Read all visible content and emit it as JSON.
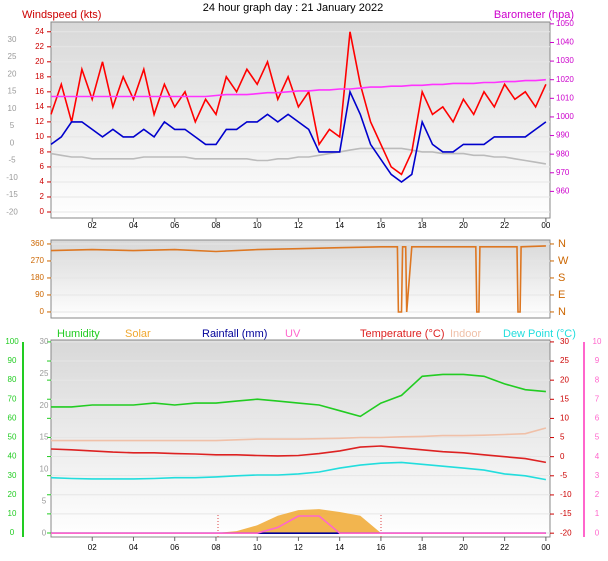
{
  "chart_data": [
    {
      "type": "line",
      "title": "24 hour graph day : 21 January 2022",
      "ylabel": "Windspeed (kts)",
      "y2label": "Barometer (hpa)",
      "x": [
        0,
        0.5,
        1,
        1.5,
        2,
        2.5,
        3,
        3.5,
        4,
        4.5,
        5,
        5.5,
        6,
        6.5,
        7,
        7.5,
        8,
        8.5,
        9,
        9.5,
        10,
        10.5,
        11,
        11.5,
        12,
        12.5,
        13,
        13.5,
        14,
        14.5,
        15,
        15.5,
        16,
        16.5,
        17,
        17.5,
        18,
        18.5,
        19,
        19.5,
        20,
        20.5,
        21,
        21.5,
        22,
        22.5,
        23,
        23.5,
        24
      ],
      "xlim": [
        0,
        24.2
      ],
      "xticks": [
        {
          "value": 2,
          "label": "02"
        },
        {
          "value": 4,
          "label": "04"
        },
        {
          "value": 6,
          "label": "06"
        },
        {
          "value": 8,
          "label": "08"
        },
        10,
        12,
        14,
        16,
        18,
        20,
        22,
        {
          "value": 24,
          "label": "00"
        }
      ],
      "ylim": [
        -0.8,
        25.3
      ],
      "yticks": [
        0,
        2,
        4,
        6,
        8,
        10,
        12,
        14,
        16,
        18,
        20,
        22,
        24
      ],
      "y2lim": [
        945.7,
        1051
      ],
      "y2ticks": [
        960,
        970,
        980,
        990,
        1000,
        1010,
        1020,
        1030,
        1040,
        1050
      ],
      "y3lim": [
        -21.7,
        35.2
      ],
      "y3ticks": [
        -20,
        -15,
        -10,
        -5,
        0,
        5,
        10,
        15,
        20,
        25,
        30
      ],
      "axis_colors": {
        "y": "#cc0000",
        "y2": "#cc00cc",
        "y3": "#999999"
      },
      "grid": true,
      "series": [
        {
          "axis": "y3",
          "color": "#bbbbbb",
          "values": [
            -3,
            -3.5,
            -4,
            -4,
            -4.5,
            -4.5,
            -4.5,
            -4.5,
            -4.5,
            -4,
            -4,
            -4,
            -4,
            -4,
            -4.5,
            -4.5,
            -4.5,
            -4.5,
            -4.5,
            -4.5,
            -5,
            -5,
            -4.5,
            -4.5,
            -4,
            -4,
            -3.5,
            -3,
            -2.5,
            -2,
            -1.5,
            -1.5,
            -1.5,
            -1.5,
            -1.5,
            -2,
            -2.5,
            -2.5,
            -3,
            -3,
            -3,
            -3.5,
            -3.5,
            -4,
            -4,
            -4.5,
            -5,
            -5.5,
            -6
          ]
        },
        {
          "axis": "y",
          "color": "#ff0000",
          "values": [
            13,
            17,
            12,
            19,
            15,
            20,
            14,
            18,
            15,
            19,
            13,
            17,
            14,
            16,
            12,
            15,
            13,
            18,
            16,
            19,
            17,
            20,
            15,
            18,
            14,
            16,
            9,
            11,
            10,
            24,
            17,
            12,
            9,
            6,
            5,
            8,
            16,
            13,
            14,
            12,
            15,
            13,
            16,
            14,
            17,
            15,
            16,
            14,
            17
          ]
        },
        {
          "axis": "y",
          "color": "#0000cc",
          "values": [
            9,
            10,
            12,
            12,
            11,
            10,
            11,
            10,
            10,
            11,
            10,
            12,
            11,
            11,
            10,
            9,
            9,
            11,
            11,
            12,
            12,
            13,
            12,
            13,
            12,
            11,
            8,
            8,
            8,
            16,
            13,
            9,
            7,
            5,
            4,
            5,
            12,
            9,
            8,
            8,
            9,
            9,
            9,
            10,
            10,
            10,
            10,
            11,
            12
          ]
        },
        {
          "axis": "y2",
          "color": "#ff33ff",
          "values": [
            1011,
            1011,
            1011,
            1011,
            1011,
            1011,
            1011,
            1011,
            1011,
            1011,
            1011,
            1011,
            1011,
            1011,
            1011,
            1011,
            1011.5,
            1012,
            1012,
            1012,
            1012.5,
            1013,
            1013,
            1013.5,
            1014,
            1014,
            1014.5,
            1014.5,
            1015,
            1015,
            1015.5,
            1016,
            1016,
            1016.5,
            1016.5,
            1017,
            1017,
            1017.5,
            1017.5,
            1018,
            1018,
            1018,
            1018.5,
            1018.5,
            1019,
            1019,
            1019.5,
            1019.5,
            1020
          ]
        }
      ]
    },
    {
      "type": "line",
      "x": [
        0,
        2,
        4,
        6,
        8,
        10,
        12,
        14,
        16,
        16.8,
        16.85,
        17,
        17.05,
        17.2,
        17.25,
        17.5,
        20.6,
        20.65,
        20.75,
        20.8,
        22.6,
        22.65,
        22.75,
        22.8,
        24
      ],
      "xlim": [
        0,
        24.2
      ],
      "ylim": [
        -32,
        381
      ],
      "yticks": [
        0,
        90,
        180,
        270,
        360
      ],
      "y2lim": [
        -32,
        381
      ],
      "y2ticks": [
        {
          "value": 0,
          "label": "N"
        },
        {
          "value": 90,
          "label": "E"
        },
        {
          "value": 180,
          "label": "S"
        },
        {
          "value": 270,
          "label": "W"
        },
        {
          "value": 360,
          "label": "N"
        }
      ],
      "axis_colors": {
        "y": "#cc6600",
        "y2": "#cc6600"
      },
      "grid": true,
      "series": [
        {
          "axis": "y",
          "color": "#dd7722",
          "values": [
            325,
            330,
            325,
            330,
            320,
            330,
            335,
            340,
            345,
            345,
            0,
            0,
            345,
            345,
            0,
            345,
            345,
            0,
            0,
            345,
            345,
            0,
            0,
            345,
            350
          ]
        }
      ]
    },
    {
      "type": "line",
      "x": [
        0,
        1,
        2,
        3,
        4,
        5,
        6,
        7,
        8,
        9,
        10,
        11,
        12,
        13,
        14,
        15,
        16,
        17,
        18,
        19,
        20,
        21,
        22,
        23,
        24
      ],
      "xlim": [
        0,
        24.2
      ],
      "xticks": [
        {
          "value": 2,
          "label": "02"
        },
        {
          "value": 4,
          "label": "04"
        },
        {
          "value": 6,
          "label": "06"
        },
        {
          "value": 8,
          "label": "08"
        },
        10,
        12,
        14,
        16,
        18,
        20,
        22,
        {
          "value": 24,
          "label": "00"
        }
      ],
      "ylim": [
        -2.1,
        101
      ],
      "yticks": [
        0,
        10,
        20,
        30,
        40,
        50,
        60,
        70,
        80,
        90,
        100
      ],
      "y3lim": [
        -0.6,
        30.3
      ],
      "y3ticks": [
        0,
        5,
        10,
        15,
        20,
        25,
        30
      ],
      "y2lim": [
        -21,
        30.5
      ],
      "y2ticks": [
        -20,
        -15,
        -10,
        -5,
        0,
        5,
        10,
        15,
        20,
        25,
        30
      ],
      "y4lim": [
        -0.2,
        10.1
      ],
      "y4ticks": [
        0,
        1,
        2,
        3,
        4,
        5,
        6,
        7,
        8,
        9,
        10
      ],
      "axis_colors": {
        "y": "#22cc22",
        "y2": "#cc0000",
        "y3": "#999999",
        "y4": "#ff66cc"
      },
      "grid": true,
      "series": [
        {
          "name": "Humidity",
          "axis": "y",
          "color": "#22cc22",
          "values": [
            66,
            66,
            67,
            67,
            67,
            68,
            67,
            68,
            68,
            69,
            70,
            69,
            68,
            67,
            64,
            61,
            68,
            72,
            82,
            83,
            83,
            82,
            78,
            75,
            74
          ]
        },
        {
          "name": "Solar",
          "axis": "y",
          "color": "#f0a830",
          "area": true,
          "values": [
            0,
            0,
            0,
            0,
            0,
            0,
            0,
            0,
            0,
            1,
            4,
            9,
            12,
            12.5,
            11,
            9,
            0,
            0,
            0,
            0,
            0,
            0,
            0,
            0,
            0
          ]
        },
        {
          "name": "Rainfall (mm)",
          "axis": "y3",
          "color": "#000099",
          "values": [
            0,
            0,
            0,
            0,
            0,
            0,
            0,
            0,
            0,
            0,
            0,
            0,
            0,
            0,
            0,
            0,
            0,
            0,
            0,
            0,
            0,
            0,
            0,
            0,
            0
          ]
        },
        {
          "name": "UV",
          "axis": "y4",
          "color": "#ff66cc",
          "values": [
            0,
            0,
            0,
            0,
            0,
            0,
            0,
            0,
            0,
            0,
            0,
            0.3,
            0.9,
            0.9,
            0,
            0,
            0,
            0,
            0,
            0,
            0,
            0,
            0,
            0,
            0
          ]
        },
        {
          "name": "Temperature (°C)",
          "axis": "y2",
          "color": "#dd2222",
          "values": [
            2,
            1.8,
            1.5,
            1.2,
            1,
            1,
            0.8,
            0.7,
            0.5,
            0.5,
            0.3,
            0.2,
            0.3,
            0.8,
            1.5,
            2.5,
            2.8,
            2.3,
            1.8,
            1.3,
            1,
            0.5,
            0,
            -0.5,
            -1.5
          ]
        },
        {
          "name": "Indoor",
          "axis": "y2",
          "color": "#f0c0a8",
          "values": [
            4.2,
            4.2,
            4.2,
            4.2,
            4.2,
            4.2,
            4.2,
            4.2,
            4.2,
            4.4,
            4.6,
            4.6,
            4.6,
            4.7,
            4.8,
            5,
            5,
            5.2,
            5.3,
            5.5,
            5.5,
            5.6,
            5.8,
            6,
            7.5
          ]
        },
        {
          "name": "Dew Point (°C)",
          "axis": "y2",
          "color": "#22dddd",
          "values": [
            -5.5,
            -5.7,
            -5.8,
            -5.8,
            -5.8,
            -5.7,
            -5.5,
            -5.5,
            -5.3,
            -5,
            -4.8,
            -4.8,
            -4.5,
            -4,
            -3,
            -2.2,
            -1.7,
            -1.5,
            -2,
            -2.5,
            -3,
            -3.5,
            -4.5,
            -5,
            -6
          ]
        }
      ]
    }
  ]
}
